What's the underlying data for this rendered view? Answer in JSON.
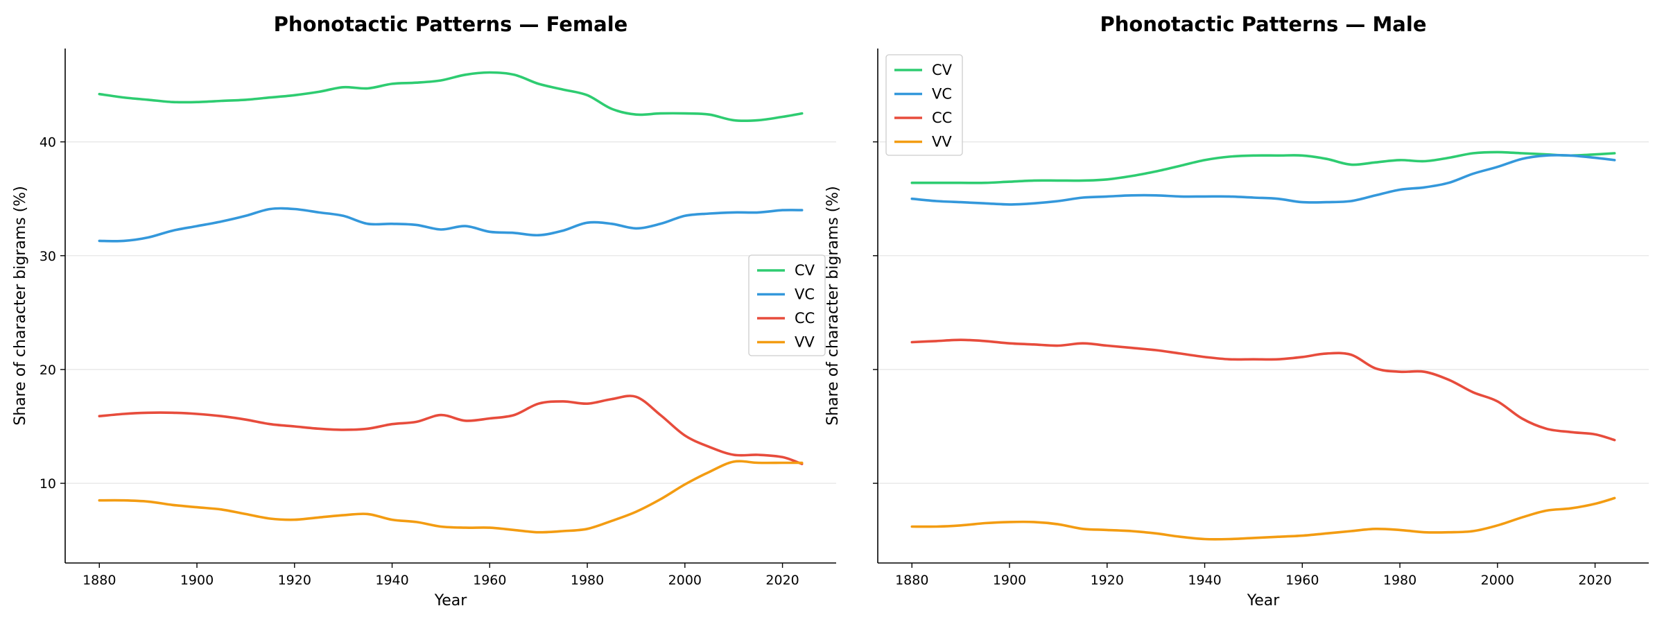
{
  "chart_data": [
    {
      "type": "line",
      "title": "Phonotactic Patterns — Female",
      "xlabel": "Year",
      "ylabel": "Share of character bigrams (%)",
      "xlim": [
        1873,
        2031
      ],
      "ylim": [
        3.0,
        48.2
      ],
      "xticks": [
        1880,
        1900,
        1920,
        1940,
        1960,
        1980,
        2000,
        2020
      ],
      "yticks": [
        10,
        20,
        30,
        40
      ],
      "grid": "horizontal",
      "legend": "center-right",
      "x": [
        1880,
        1885,
        1890,
        1895,
        1900,
        1905,
        1910,
        1915,
        1920,
        1925,
        1930,
        1935,
        1940,
        1945,
        1950,
        1955,
        1960,
        1965,
        1970,
        1975,
        1980,
        1985,
        1990,
        1995,
        2000,
        2005,
        2010,
        2015,
        2020,
        2024
      ],
      "series": [
        {
          "name": "CV",
          "color": "#2ecc71",
          "values": [
            44.2,
            43.9,
            43.7,
            43.5,
            43.5,
            43.6,
            43.7,
            43.9,
            44.1,
            44.4,
            44.8,
            44.7,
            45.1,
            45.2,
            45.4,
            45.9,
            46.1,
            45.9,
            45.1,
            44.6,
            44.1,
            42.9,
            42.4,
            42.5,
            42.5,
            42.4,
            41.9,
            41.9,
            42.2,
            42.5
          ]
        },
        {
          "name": "VC",
          "color": "#3498db",
          "values": [
            31.3,
            31.3,
            31.6,
            32.2,
            32.6,
            33.0,
            33.5,
            34.1,
            34.1,
            33.8,
            33.5,
            32.8,
            32.8,
            32.7,
            32.3,
            32.6,
            32.1,
            32.0,
            31.8,
            32.2,
            32.9,
            32.8,
            32.4,
            32.8,
            33.5,
            33.7,
            33.8,
            33.8,
            34.0,
            34.0
          ]
        },
        {
          "name": "CC",
          "color": "#e74c3c",
          "values": [
            15.9,
            16.1,
            16.2,
            16.2,
            16.1,
            15.9,
            15.6,
            15.2,
            15.0,
            14.8,
            14.7,
            14.8,
            15.2,
            15.4,
            16.0,
            15.5,
            15.7,
            16.0,
            17.0,
            17.2,
            17.0,
            17.4,
            17.6,
            16.0,
            14.2,
            13.2,
            12.5,
            12.5,
            12.3,
            11.7
          ]
        },
        {
          "name": "VV",
          "color": "#f39c12",
          "values": [
            8.5,
            8.5,
            8.4,
            8.1,
            7.9,
            7.7,
            7.3,
            6.9,
            6.8,
            7.0,
            7.2,
            7.3,
            6.8,
            6.6,
            6.2,
            6.1,
            6.1,
            5.9,
            5.7,
            5.8,
            6.0,
            6.7,
            7.5,
            8.6,
            9.9,
            11.0,
            11.9,
            11.8,
            11.8,
            11.8
          ]
        }
      ]
    },
    {
      "type": "line",
      "title": "Phonotactic Patterns — Male",
      "xlabel": "Year",
      "ylabel": "Share of character bigrams (%)",
      "xlim": [
        1873,
        2031
      ],
      "ylim": [
        3.0,
        48.2
      ],
      "xticks": [
        1880,
        1900,
        1920,
        1940,
        1960,
        1980,
        2000,
        2020
      ],
      "yticks": [
        10,
        20,
        30,
        40
      ],
      "grid": "horizontal",
      "legend": "top-left",
      "x": [
        1880,
        1885,
        1890,
        1895,
        1900,
        1905,
        1910,
        1915,
        1920,
        1925,
        1930,
        1935,
        1940,
        1945,
        1950,
        1955,
        1960,
        1965,
        1970,
        1975,
        1980,
        1985,
        1990,
        1995,
        2000,
        2005,
        2010,
        2015,
        2020,
        2024
      ],
      "series": [
        {
          "name": "CV",
          "color": "#2ecc71",
          "values": [
            36.4,
            36.4,
            36.4,
            36.4,
            36.5,
            36.6,
            36.6,
            36.6,
            36.7,
            37.0,
            37.4,
            37.9,
            38.4,
            38.7,
            38.8,
            38.8,
            38.8,
            38.5,
            38.0,
            38.2,
            38.4,
            38.3,
            38.6,
            39.0,
            39.1,
            39.0,
            38.9,
            38.8,
            38.9,
            39.0
          ]
        },
        {
          "name": "VC",
          "color": "#3498db",
          "values": [
            35.0,
            34.8,
            34.7,
            34.6,
            34.5,
            34.6,
            34.8,
            35.1,
            35.2,
            35.3,
            35.3,
            35.2,
            35.2,
            35.2,
            35.1,
            35.0,
            34.7,
            34.7,
            34.8,
            35.3,
            35.8,
            36.0,
            36.4,
            37.2,
            37.8,
            38.5,
            38.8,
            38.8,
            38.6,
            38.4
          ]
        },
        {
          "name": "CC",
          "color": "#e74c3c",
          "values": [
            22.4,
            22.5,
            22.6,
            22.5,
            22.3,
            22.2,
            22.1,
            22.3,
            22.1,
            21.9,
            21.7,
            21.4,
            21.1,
            20.9,
            20.9,
            20.9,
            21.1,
            21.4,
            21.3,
            20.1,
            19.8,
            19.8,
            19.1,
            18.0,
            17.2,
            15.7,
            14.8,
            14.5,
            14.3,
            13.8
          ]
        },
        {
          "name": "VV",
          "color": "#f39c12",
          "values": [
            6.2,
            6.2,
            6.3,
            6.5,
            6.6,
            6.6,
            6.4,
            6.0,
            5.9,
            5.8,
            5.6,
            5.3,
            5.1,
            5.1,
            5.2,
            5.3,
            5.4,
            5.6,
            5.8,
            6.0,
            5.9,
            5.7,
            5.7,
            5.8,
            6.3,
            7.0,
            7.6,
            7.8,
            8.2,
            8.7
          ]
        }
      ]
    }
  ]
}
